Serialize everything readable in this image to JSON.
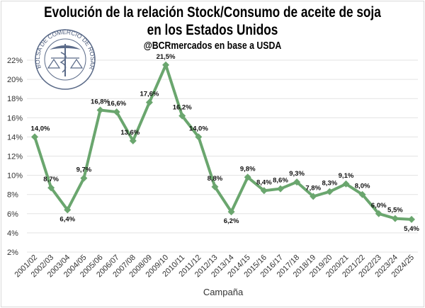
{
  "chart_data": {
    "type": "line",
    "title": "Evolución de la relación Stock/Consumo de aceite de soja",
    "title_line2": "en los Estados Unidos",
    "subtitle": "@BCRmercados en base a USDA",
    "xlabel": "Campaña",
    "ylabel": "",
    "ylim": [
      2,
      22
    ],
    "yticks": [
      "2%",
      "4%",
      "6%",
      "8%",
      "10%",
      "12%",
      "14%",
      "16%",
      "18%",
      "20%",
      "22%"
    ],
    "grid": true,
    "line_color": "#6aa66e",
    "categories": [
      "2001/02",
      "2002/03",
      "2003/04",
      "2004/05",
      "2005/06",
      "2006/07",
      "2007/08",
      "2008/09",
      "2009/10",
      "2010/11",
      "2011/12",
      "2012/13",
      "2013/14",
      "2014/15",
      "2015/16",
      "2016/17",
      "2017/18",
      "2018/19",
      "2019/20",
      "2020/21",
      "2021/22",
      "2022/23",
      "2023/24",
      "2024/25"
    ],
    "values": [
      14.0,
      8.7,
      6.4,
      9.7,
      16.8,
      16.6,
      13.6,
      17.6,
      21.5,
      16.2,
      14.0,
      8.8,
      6.2,
      9.8,
      8.4,
      8.6,
      9.3,
      7.8,
      8.3,
      9.1,
      8.0,
      6.0,
      5.5,
      5.4
    ],
    "data_labels": [
      "14,0%",
      "8,7%",
      "6,4%",
      "9,7%",
      "16,8%",
      "16,6%",
      "13,6%",
      "17,6%",
      "21,5%",
      "16,2%",
      "14,0%",
      "8,8%",
      "6,2%",
      "9,8%",
      "8,4%",
      "8,6%",
      "9,3%",
      "7,8%",
      "8,3%",
      "9,1%",
      "8,0%",
      "6,0%",
      "5,5%",
      "5,4%"
    ]
  },
  "logo": {
    "text": "BOLSA DE COMERCIO DE ROSARIO"
  }
}
